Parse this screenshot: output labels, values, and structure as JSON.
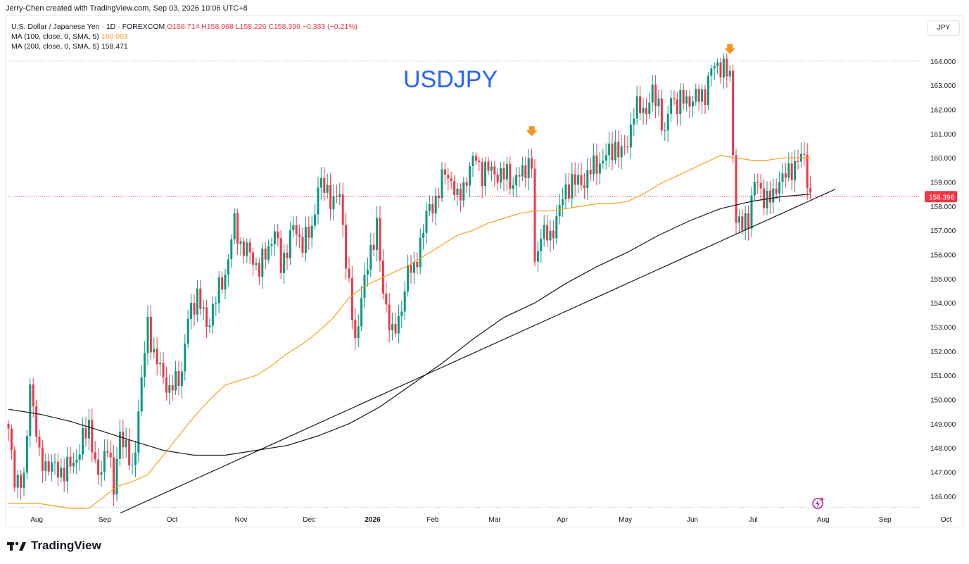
{
  "header": {
    "credit": "Jerry-Chen created with TradingView.com, Sep 03, 2026 10:06 UTC+8"
  },
  "legend": {
    "instrument": "U.S. Dollar / Japanese Yen · 1D · FOREXCOM",
    "ohlc": "O158.714 H158.968 L158.226 C158.396 −0.333 (−0.21%)",
    "ma100_label": "MA (100, close, 0, SMA, 5)",
    "ma100_value": "160.003",
    "ma200_label": "MA (200, close, 0, SMA, 5)",
    "ma200_value": "158.471"
  },
  "symbol_title": "USDJPY",
  "currency_button": "JPY",
  "last_price_label": "158.396",
  "footer": {
    "brand": "TradingView"
  },
  "colors": {
    "up": "#089981",
    "down": "#f23645",
    "ma100": "#f7a21b",
    "ma200": "#131722",
    "trendline": "#131722",
    "arrow": "#f7931a",
    "title": "#2962ff"
  },
  "chart_data": {
    "type": "candlestick",
    "title": "USDJPY",
    "y_axis": {
      "side": "right",
      "ylim": [
        145.5,
        164.2
      ],
      "ticks": [
        "164.000",
        "163.000",
        "162.000",
        "161.000",
        "160.000",
        "159.000",
        "158.000",
        "157.000",
        "156.000",
        "155.000",
        "154.000",
        "153.000",
        "152.000",
        "151.000",
        "150.000",
        "149.000",
        "148.000",
        "147.000",
        "146.000"
      ]
    },
    "x_axis": {
      "labels": [
        "Aug",
        "Sep",
        "Oct",
        "Nov",
        "Dec",
        "2026",
        "Feb",
        "Mar",
        "Apr",
        "May",
        "Jun",
        "Jul",
        "Aug",
        "Sep",
        "Oct"
      ]
    },
    "price_path": [
      [
        0,
        148.6
      ],
      [
        2,
        146.8
      ],
      [
        5,
        146.5
      ],
      [
        7,
        150.8
      ],
      [
        10,
        147.5
      ],
      [
        14,
        147.2
      ],
      [
        18,
        147.0
      ],
      [
        22,
        147.6
      ],
      [
        26,
        149.0
      ],
      [
        29,
        146.6
      ],
      [
        32,
        148.3
      ],
      [
        34,
        146.1
      ],
      [
        36,
        148.8
      ],
      [
        40,
        147.0
      ],
      [
        45,
        153.2
      ],
      [
        47,
        151.8
      ],
      [
        50,
        151.0
      ],
      [
        52,
        150.3
      ],
      [
        56,
        151.2
      ],
      [
        58,
        153.3
      ],
      [
        61,
        154.4
      ],
      [
        64,
        153.0
      ],
      [
        67,
        154.2
      ],
      [
        70,
        155.2
      ],
      [
        72,
        156.6
      ],
      [
        73,
        157.3
      ],
      [
        75,
        156.4
      ],
      [
        78,
        156.0
      ],
      [
        81,
        155.4
      ],
      [
        84,
        156.3
      ],
      [
        86,
        157.0
      ],
      [
        88,
        155.5
      ],
      [
        90,
        156.3
      ],
      [
        92,
        157.1
      ],
      [
        95,
        156.5
      ],
      [
        98,
        157.0
      ],
      [
        100,
        158.9
      ],
      [
        103,
        158.6
      ],
      [
        105,
        158.2
      ],
      [
        107,
        158.4
      ],
      [
        109,
        155.9
      ],
      [
        112,
        152.2
      ],
      [
        114,
        154.4
      ],
      [
        117,
        156.0
      ],
      [
        119,
        157.4
      ],
      [
        121,
        154.2
      ],
      [
        124,
        152.9
      ],
      [
        126,
        153.0
      ],
      [
        129,
        155.5
      ],
      [
        131,
        155.2
      ],
      [
        133,
        156.6
      ],
      [
        135,
        157.6
      ],
      [
        138,
        158.3
      ],
      [
        141,
        159.4
      ],
      [
        143,
        159.1
      ],
      [
        145,
        158.2
      ],
      [
        148,
        159.2
      ],
      [
        151,
        160.1
      ],
      [
        153,
        159.3
      ],
      [
        156,
        159.6
      ],
      [
        159,
        159.1
      ],
      [
        161,
        159.5
      ],
      [
        163,
        158.8
      ],
      [
        165,
        159.3
      ],
      [
        167,
        159.7
      ],
      [
        169,
        159.6
      ],
      [
        170,
        155.5
      ],
      [
        172,
        157.0
      ],
      [
        175,
        156.6
      ],
      [
        177,
        157.6
      ],
      [
        180,
        158.6
      ],
      [
        182,
        159.1
      ],
      [
        185,
        158.9
      ],
      [
        188,
        159.5
      ],
      [
        191,
        159.8
      ],
      [
        194,
        160.2
      ],
      [
        196,
        160.5
      ],
      [
        198,
        160.1
      ],
      [
        200,
        160.7
      ],
      [
        202,
        161.9
      ],
      [
        204,
        162.1
      ],
      [
        206,
        162.0
      ],
      [
        208,
        162.6
      ],
      [
        210,
        162.3
      ],
      [
        212,
        160.8
      ],
      [
        214,
        162.6
      ],
      [
        216,
        162.2
      ],
      [
        218,
        162.4
      ],
      [
        220,
        162.4
      ],
      [
        223,
        162.5
      ],
      [
        225,
        162.7
      ],
      [
        227,
        163.6
      ],
      [
        229,
        163.9
      ],
      [
        231,
        163.7
      ],
      [
        233,
        163.3
      ],
      [
        235,
        157.5
      ],
      [
        237,
        157.1
      ],
      [
        239,
        157.6
      ],
      [
        241,
        159.0
      ],
      [
        244,
        158.4
      ],
      [
        247,
        158.3
      ],
      [
        249,
        159.2
      ],
      [
        252,
        159.3
      ],
      [
        255,
        160.0
      ],
      [
        257,
        159.9
      ],
      [
        259,
        158.4
      ]
    ],
    "series": [
      {
        "name": "MA (100, close, 0, SMA, 5)",
        "points": [
          [
            0,
            145.7
          ],
          [
            10,
            145.7
          ],
          [
            20,
            145.5
          ],
          [
            26,
            145.5
          ],
          [
            30,
            145.9
          ],
          [
            35,
            146.4
          ],
          [
            40,
            146.6
          ],
          [
            45,
            146.9
          ],
          [
            50,
            147.7
          ],
          [
            55,
            148.5
          ],
          [
            60,
            149.3
          ],
          [
            65,
            150.0
          ],
          [
            70,
            150.6
          ],
          [
            75,
            150.8
          ],
          [
            80,
            151.0
          ],
          [
            85,
            151.4
          ],
          [
            90,
            151.9
          ],
          [
            95,
            152.3
          ],
          [
            100,
            152.8
          ],
          [
            105,
            153.4
          ],
          [
            110,
            154.2
          ],
          [
            115,
            154.7
          ],
          [
            120,
            155.0
          ],
          [
            125,
            155.3
          ],
          [
            130,
            155.6
          ],
          [
            135,
            156.0
          ],
          [
            140,
            156.4
          ],
          [
            145,
            156.8
          ],
          [
            150,
            157.0
          ],
          [
            155,
            157.3
          ],
          [
            160,
            157.5
          ],
          [
            165,
            157.7
          ],
          [
            170,
            157.8
          ],
          [
            175,
            157.8
          ],
          [
            180,
            157.9
          ],
          [
            185,
            158.0
          ],
          [
            190,
            158.1
          ],
          [
            195,
            158.1
          ],
          [
            200,
            158.2
          ],
          [
            205,
            158.5
          ],
          [
            210,
            158.9
          ],
          [
            215,
            159.2
          ],
          [
            220,
            159.5
          ],
          [
            225,
            159.8
          ],
          [
            230,
            160.1
          ],
          [
            235,
            160.0
          ],
          [
            240,
            159.9
          ],
          [
            245,
            159.9
          ],
          [
            250,
            160.0
          ],
          [
            255,
            160.0
          ],
          [
            259,
            160.0
          ]
        ]
      },
      {
        "name": "MA (200, close, 0, SMA, 5)",
        "points": [
          [
            0,
            149.6
          ],
          [
            10,
            149.4
          ],
          [
            20,
            149.1
          ],
          [
            30,
            148.7
          ],
          [
            40,
            148.3
          ],
          [
            50,
            147.9
          ],
          [
            60,
            147.7
          ],
          [
            70,
            147.7
          ],
          [
            80,
            147.9
          ],
          [
            90,
            148.1
          ],
          [
            100,
            148.5
          ],
          [
            110,
            149.0
          ],
          [
            120,
            149.7
          ],
          [
            130,
            150.6
          ],
          [
            140,
            151.5
          ],
          [
            150,
            152.5
          ],
          [
            160,
            153.4
          ],
          [
            170,
            154.0
          ],
          [
            180,
            154.8
          ],
          [
            190,
            155.5
          ],
          [
            200,
            156.1
          ],
          [
            210,
            156.8
          ],
          [
            220,
            157.4
          ],
          [
            230,
            157.9
          ],
          [
            240,
            158.2
          ],
          [
            250,
            158.4
          ],
          [
            259,
            158.5
          ]
        ]
      }
    ],
    "trendline": [
      [
        36,
        145.3
      ],
      [
        267,
        158.7
      ]
    ],
    "annotations": [
      "down-arrow at May high",
      "down-arrow at July high"
    ],
    "grid": false,
    "last_price": 158.396
  }
}
